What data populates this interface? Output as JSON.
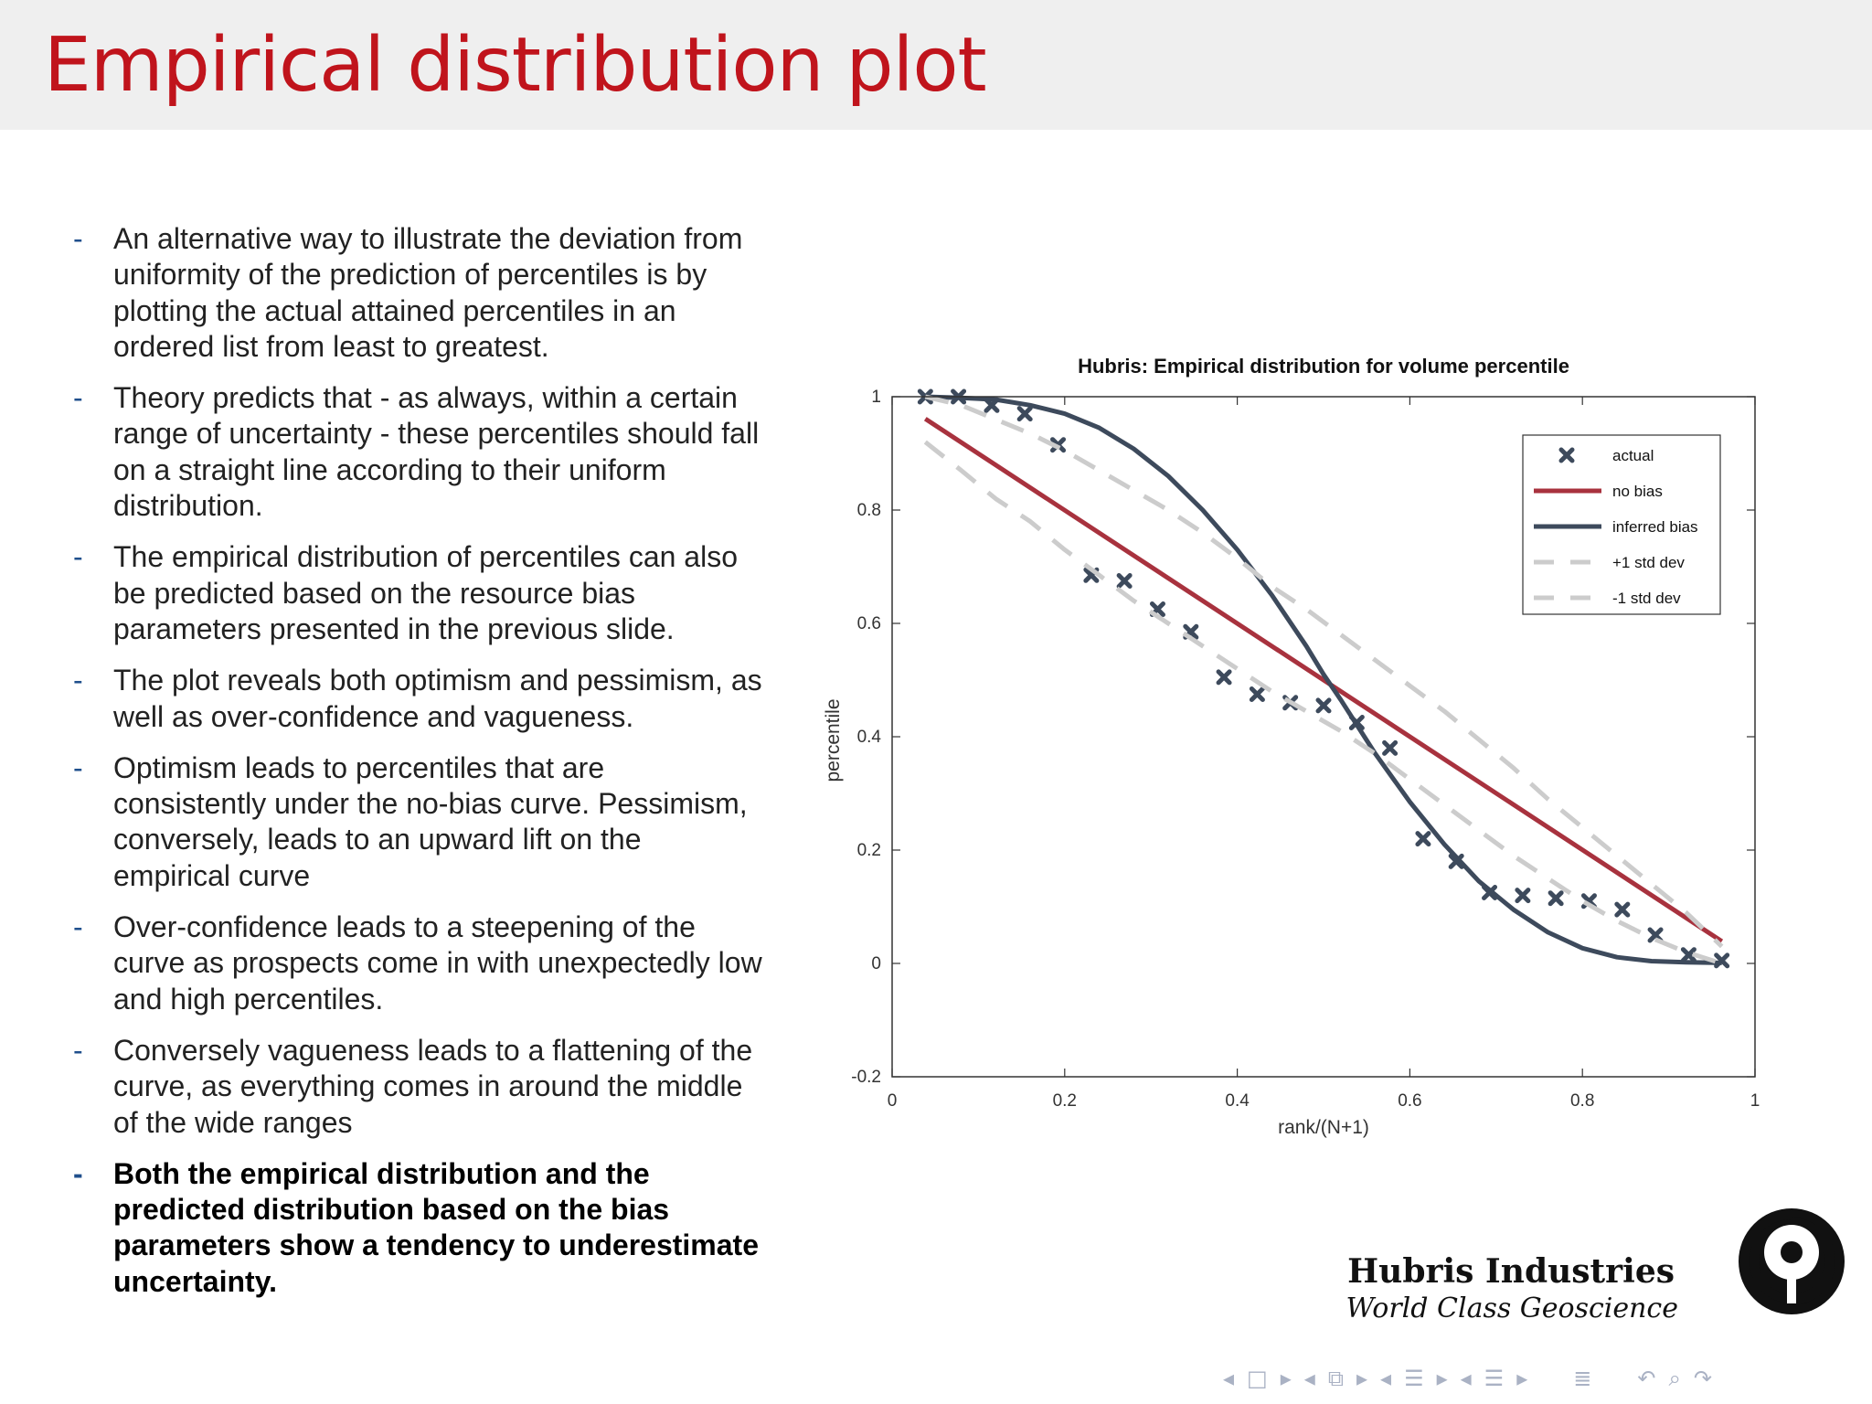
{
  "slide": {
    "title": "Empirical distribution plot",
    "bullets": [
      {
        "text": "An alternative way to illustrate the deviation from uniformity of the prediction of percentiles is by plotting the actual attained percentiles in an ordered list from least to greatest.",
        "bold": false
      },
      {
        "text": "Theory predicts that - as always, within a certain range of uncertainty - these percentiles should fall on a straight line according to their uniform distribution.",
        "bold": false
      },
      {
        "text": "The empirical distribution of percentiles can also be predicted based on the resource bias parameters presented in the previous slide.",
        "bold": false
      },
      {
        "text": "The plot reveals both optimism and pessimism, as well as over-confidence and vagueness.",
        "bold": false
      },
      {
        "text": "Optimism leads to percentiles that are consistently under the no-bias curve. Pessimism, conversely, leads to an upward lift on the empirical curve",
        "bold": false
      },
      {
        "text": "Over-confidence leads to a steepening of the curve as prospects come in with unexpectedly low and high percentiles.",
        "bold": false
      },
      {
        "text": "Conversely vagueness leads to a flattening of the curve, as everything comes in around the middle of the wide ranges",
        "bold": false
      },
      {
        "text": "Both the empirical distribution and the predicted distribution based on the bias parameters show a tendency to underestimate uncertainty.",
        "bold": true
      }
    ],
    "bullet_marker": "-"
  },
  "logo": {
    "name": "Hubris Industries",
    "tagline": "World Class Geoscience"
  },
  "chart_data": {
    "type": "line",
    "title": "Hubris: Empirical distribution for volume percentile",
    "xlabel": "rank/(N+1)",
    "ylabel": "percentile",
    "xlim": [
      0,
      1
    ],
    "ylim": [
      -0.2,
      1
    ],
    "xticks": [
      0,
      0.2,
      0.4,
      0.6,
      0.8,
      1
    ],
    "xtick_labels": [
      "0",
      "0.2",
      "0.4",
      "0.6",
      "0.8",
      "1"
    ],
    "yticks": [
      -0.2,
      0,
      0.2,
      0.4,
      0.6,
      0.8,
      1
    ],
    "ytick_labels": [
      "-0.2",
      "0",
      "0.2",
      "0.4",
      "0.6",
      "0.8",
      "1"
    ],
    "grid": false,
    "legend_position": "top-right",
    "series": [
      {
        "name": "actual",
        "style": "markers-x",
        "color": "#3d4a5c",
        "x": [
          0.0385,
          0.0769,
          0.1154,
          0.1538,
          0.1923,
          0.2308,
          0.2692,
          0.3077,
          0.3462,
          0.3846,
          0.4231,
          0.4615,
          0.5,
          0.5385,
          0.5769,
          0.6154,
          0.6538,
          0.6923,
          0.7308,
          0.7692,
          0.8077,
          0.8462,
          0.8846,
          0.9231,
          0.9615
        ],
        "y": [
          1.0,
          1.0,
          0.985,
          0.97,
          0.915,
          0.685,
          0.675,
          0.625,
          0.585,
          0.505,
          0.475,
          0.46,
          0.455,
          0.425,
          0.38,
          0.22,
          0.18,
          0.125,
          0.12,
          0.115,
          0.11,
          0.095,
          0.05,
          0.015,
          0.005
        ]
      },
      {
        "name": "no bias",
        "style": "solid",
        "color": "#a8323e",
        "x": [
          0.0385,
          0.9615
        ],
        "y": [
          0.961,
          0.039
        ]
      },
      {
        "name": "inferred bias",
        "style": "solid",
        "color": "#3d4a5c",
        "x": [
          0.0385,
          0.08,
          0.12,
          0.16,
          0.2,
          0.24,
          0.28,
          0.32,
          0.36,
          0.4,
          0.44,
          0.48,
          0.5,
          0.52,
          0.56,
          0.6,
          0.64,
          0.68,
          0.72,
          0.76,
          0.8,
          0.84,
          0.88,
          0.92,
          0.9615
        ],
        "y": [
          1.0,
          0.998,
          0.995,
          0.985,
          0.97,
          0.945,
          0.908,
          0.86,
          0.8,
          0.73,
          0.65,
          0.56,
          0.51,
          0.465,
          0.37,
          0.285,
          0.21,
          0.145,
          0.095,
          0.055,
          0.027,
          0.011,
          0.004,
          0.002,
          0.001
        ]
      },
      {
        "name": "+1 std dev",
        "style": "dashed",
        "color": "#cccccc",
        "x": [
          0.0385,
          0.08,
          0.12,
          0.16,
          0.2,
          0.24,
          0.28,
          0.32,
          0.36,
          0.4,
          0.44,
          0.48,
          0.52,
          0.56,
          0.6,
          0.64,
          0.68,
          0.72,
          0.76,
          0.8,
          0.84,
          0.88,
          0.92,
          0.9615
        ],
        "y": [
          1.0,
          0.985,
          0.96,
          0.935,
          0.905,
          0.87,
          0.835,
          0.8,
          0.76,
          0.715,
          0.665,
          0.625,
          0.58,
          0.535,
          0.49,
          0.445,
          0.395,
          0.345,
          0.29,
          0.24,
          0.19,
          0.14,
          0.09,
          0.03
        ]
      },
      {
        "name": "-1 std dev",
        "style": "dashed",
        "color": "#cccccc",
        "x": [
          0.0385,
          0.08,
          0.12,
          0.16,
          0.2,
          0.24,
          0.28,
          0.32,
          0.36,
          0.4,
          0.44,
          0.48,
          0.52,
          0.56,
          0.6,
          0.64,
          0.68,
          0.72,
          0.76,
          0.8,
          0.84,
          0.88,
          0.92,
          0.9615
        ],
        "y": [
          0.92,
          0.87,
          0.82,
          0.78,
          0.73,
          0.685,
          0.64,
          0.6,
          0.56,
          0.52,
          0.48,
          0.445,
          0.41,
          0.37,
          0.325,
          0.28,
          0.235,
          0.19,
          0.15,
          0.11,
          0.075,
          0.045,
          0.02,
          0.0
        ]
      }
    ]
  },
  "colors": {
    "title": "#c0141c",
    "header_bg": "#efefef",
    "bullet_dash": "#1f4f8c",
    "nav_icons": "#aab2c4"
  },
  "nav": {
    "icons": [
      "nav-prev-arrow-icon",
      "nav-frame-icon",
      "nav-next-arrow-icon",
      "nav-prev-arrow-icon",
      "nav-slides-icon",
      "nav-next-arrow-icon",
      "nav-prev-arrow-icon",
      "nav-section-icon",
      "nav-next-arrow-icon",
      "nav-prev-arrow-icon",
      "nav-subsection-icon",
      "nav-next-arrow-icon",
      "nav-toc-icon",
      "nav-back-icon",
      "nav-search-icon",
      "nav-forward-icon"
    ]
  }
}
